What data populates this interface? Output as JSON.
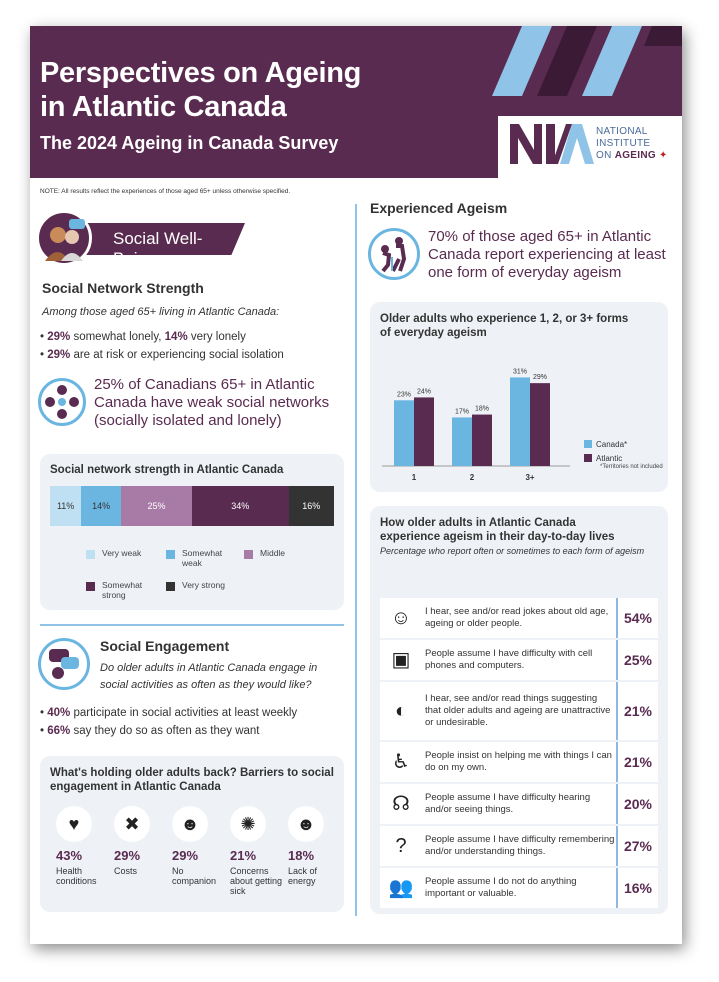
{
  "header": {
    "title_line1": "Perspectives on Ageing",
    "title_line2": "in Atlantic Canada",
    "subtitle": "The 2024 Ageing in Canada Survey",
    "logo": {
      "line1": "NATIONAL",
      "line2": "INSTITUTE",
      "line3_a": "ON ",
      "line3_b": "AGEING"
    }
  },
  "note": "NOTE: All results reflect the experiences of those aged 65+ unless otherwise specified.",
  "social_wellbeing": {
    "banner": "Social Well-Being",
    "network_heading": "Social Network Strength",
    "network_intro": "Among those aged 65+ living in Atlantic Canada:",
    "bullet1_a": "29%",
    "bullet1_b": " somewhat lonely, ",
    "bullet1_c": "14%",
    "bullet1_d": " very lonely",
    "bullet2_a": "29%",
    "bullet2_b": " are at risk or experiencing social isolation",
    "callout": "25% of Canadians 65+ in Atlantic Canada have weak social networks (socially isolated and lonely)"
  },
  "network_chart": {
    "title": "Social network strength in Atlantic Canada",
    "segments": [
      {
        "label": "Very weak",
        "value": 11,
        "text": "11%",
        "color": "#bfe0f3"
      },
      {
        "label": "Somewhat weak",
        "value": 14,
        "text": "14%",
        "color": "#6bb5e1"
      },
      {
        "label": "Middle",
        "value": 25,
        "text": "25%",
        "color": "#a87aa6"
      },
      {
        "label": "Somewhat strong",
        "value": 34,
        "text": "34%",
        "color": "#5a2b50"
      },
      {
        "label": "Very strong",
        "value": 16,
        "text": "16%",
        "color": "#333333"
      }
    ]
  },
  "engagement": {
    "heading": "Social Engagement",
    "question": "Do older adults in Atlantic Canada engage in social activities as often as they would like?",
    "bullet1_a": "40%",
    "bullet1_b": " participate in social activities at least weekly",
    "bullet2_a": "66%",
    "bullet2_b": " say they do so as often as they want"
  },
  "barriers": {
    "title": "What's holding older adults back? Barriers to social engagement in Atlantic Canada",
    "items": [
      {
        "pct": "43%",
        "label": "Health conditions",
        "icon": "heart-warning-icon"
      },
      {
        "pct": "29%",
        "label": "Costs",
        "icon": "wallet-icon"
      },
      {
        "pct": "29%",
        "label": "No companion",
        "icon": "person-icon"
      },
      {
        "pct": "21%",
        "label": "Concerns about getting sick",
        "icon": "virus-icon"
      },
      {
        "pct": "18%",
        "label": "Lack of energy",
        "icon": "head-icon"
      }
    ]
  },
  "ageism": {
    "heading": "Experienced Ageism",
    "callout": "70% of those aged 65+ in Atlantic Canada report experiencing at least one form of everyday ageism"
  },
  "chart_data": {
    "type": "bar",
    "title": "Older adults who experience 1, 2, or 3+ forms of everyday ageism",
    "categories": [
      "1",
      "2",
      "3+"
    ],
    "series": [
      {
        "name": "Canada*",
        "values": [
          23,
          17,
          31
        ],
        "labels": [
          "23%",
          "17%",
          "31%"
        ],
        "color": "#6bb5e1"
      },
      {
        "name": "Atlantic",
        "values": [
          24,
          18,
          29
        ],
        "labels": [
          "24%",
          "18%",
          "29%"
        ],
        "color": "#5a2b50"
      }
    ],
    "ylim": [
      0,
      35
    ],
    "footnote": "*Territories not included",
    "legend": "right"
  },
  "forms": {
    "title": "How older adults in Atlantic Canada experience ageism in their day-to-day lives",
    "subtitle": "Percentage who report often or sometimes to each form of ageism",
    "rows": [
      {
        "text": "I hear, see and/or read jokes about old age, ageing or older people.",
        "pct": "54%",
        "icon": "laughing-face-icon"
      },
      {
        "text": "People assume I have difficulty with cell phones and computers.",
        "pct": "25%",
        "icon": "devices-icon"
      },
      {
        "text": "I hear, see and/or read things suggesting that older adults and ageing are unattractive or undesirable.",
        "pct": "21%",
        "icon": "mirror-face-icon"
      },
      {
        "text": "People insist on helping me with things I can do on my own.",
        "pct": "21%",
        "icon": "helping-icon"
      },
      {
        "text": "People assume I have difficulty hearing and/or seeing things.",
        "pct": "20%",
        "icon": "hearing-icon"
      },
      {
        "text": "People assume I have difficulty remembering and/or understanding things.",
        "pct": "27%",
        "icon": "confused-icon"
      },
      {
        "text": "People assume I do not do anything important or valuable.",
        "pct": "16%",
        "icon": "people-icon"
      }
    ]
  }
}
